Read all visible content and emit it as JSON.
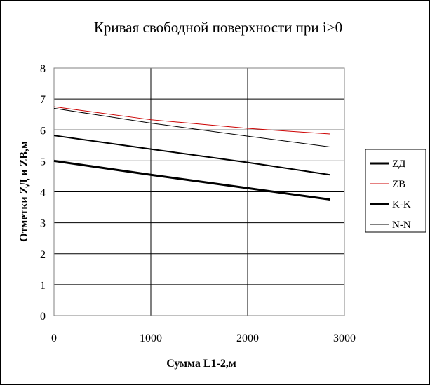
{
  "chart_data": {
    "type": "line",
    "title": "Кривая свободной поверхности при i>0",
    "xlabel": "Сумма L1-2,м",
    "ylabel": "Отметки ZД и ZВ,м",
    "xlim": [
      0,
      3000
    ],
    "ylim": [
      0,
      8
    ],
    "xticks": [
      "0",
      "1000",
      "2000",
      "3000"
    ],
    "yticks": [
      "0",
      "1",
      "2",
      "3",
      "4",
      "5",
      "6",
      "7",
      "8"
    ],
    "grid": "horizontal and vertical major",
    "legend_position": "right",
    "x": [
      0,
      1000,
      2000,
      2850
    ],
    "series": [
      {
        "name": "ZД",
        "color": "#000000",
        "width": 3,
        "values": [
          5.0,
          4.55,
          4.12,
          3.75
        ]
      },
      {
        "name": "ZB",
        "color": "#cc0000",
        "width": 1,
        "values": [
          6.75,
          6.33,
          6.05,
          5.87
        ]
      },
      {
        "name": "K-K",
        "color": "#000000",
        "width": 2,
        "values": [
          5.82,
          5.38,
          4.95,
          4.55
        ]
      },
      {
        "name": "N-N",
        "color": "#000000",
        "width": 1,
        "values": [
          6.7,
          6.22,
          5.8,
          5.45
        ]
      }
    ]
  }
}
